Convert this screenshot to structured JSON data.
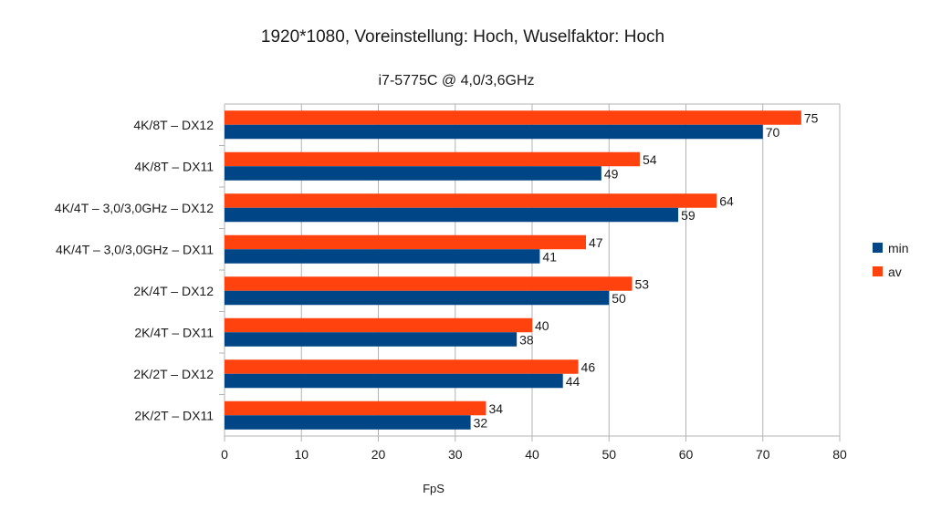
{
  "chart_data": {
    "type": "bar",
    "orientation": "horizontal",
    "title": "1920*1080, Voreinstellung: Hoch, Wuselfaktor: Hoch",
    "subtitle": "i7-5775C @ 4,0/3,6GHz",
    "xlabel": "FpS",
    "ylabel": "",
    "xlim": [
      0,
      80
    ],
    "x_ticks": [
      0,
      10,
      20,
      30,
      40,
      50,
      60,
      70,
      80
    ],
    "grid": true,
    "legend_position": "right",
    "categories": [
      "4K/8T – DX12",
      "4K/8T – DX11",
      "4K/4T – 3,0/3,0GHz – DX12",
      "4K/4T – 3,0/3,0GHz – DX11",
      "2K/4T – DX12",
      "2K/4T – DX11",
      "2K/2T – DX12",
      "2K/2T – DX11"
    ],
    "series": [
      {
        "name": "min",
        "color": "#004586",
        "values": [
          70,
          49,
          59,
          41,
          50,
          38,
          44,
          32
        ]
      },
      {
        "name": "av",
        "color": "#ff420e",
        "values": [
          75,
          54,
          64,
          47,
          53,
          40,
          46,
          34
        ]
      }
    ]
  }
}
